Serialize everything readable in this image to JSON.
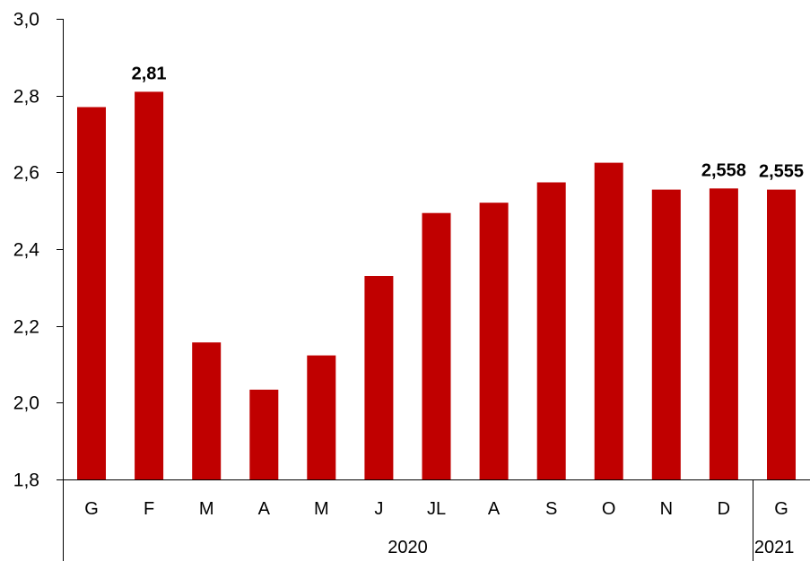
{
  "chart_data": {
    "type": "bar",
    "categories": [
      "G",
      "F",
      "M",
      "A",
      "M",
      "J",
      "JL",
      "A",
      "S",
      "O",
      "N",
      "D",
      "G"
    ],
    "values": [
      2.77,
      2.81,
      2.157,
      2.034,
      2.123,
      2.33,
      2.494,
      2.521,
      2.574,
      2.625,
      2.555,
      2.558,
      2.555
    ],
    "groups": [
      {
        "label": "2020",
        "count": 12
      },
      {
        "label": "2021",
        "count": 1
      }
    ],
    "ylim": [
      1.8,
      3.0
    ],
    "yticks": [
      1.8,
      2.0,
      2.2,
      2.4,
      2.6,
      2.8,
      3.0
    ],
    "ytick_labels": [
      "1,8",
      "2,0",
      "2,2",
      "2,4",
      "2,6",
      "2,8",
      "3,0"
    ],
    "data_labels": [
      {
        "index": 1,
        "text": "2,81"
      },
      {
        "index": 11,
        "text": "2,558"
      },
      {
        "index": 12,
        "text": "2,555"
      }
    ],
    "bar_color": "#C00000",
    "title": "",
    "xlabel": "",
    "ylabel": "",
    "grid": false,
    "legend": "none"
  }
}
